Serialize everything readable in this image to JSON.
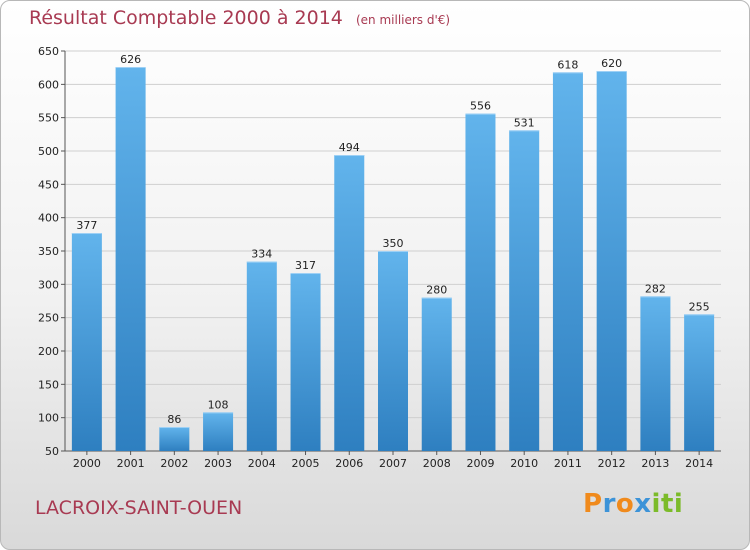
{
  "chart_data": {
    "type": "bar",
    "title": "Résultat Comptable 2000 à 2014",
    "subtitle": "(en milliers d'€)",
    "categories": [
      "2000",
      "2001",
      "2002",
      "2003",
      "2004",
      "2005",
      "2006",
      "2007",
      "2008",
      "2009",
      "2010",
      "2011",
      "2012",
      "2013",
      "2014"
    ],
    "values": [
      377,
      626,
      86,
      108,
      334,
      317,
      494,
      350,
      280,
      556,
      531,
      618,
      620,
      282,
      255
    ],
    "ylim": [
      50,
      650
    ],
    "yticks": [
      50,
      100,
      150,
      200,
      250,
      300,
      350,
      400,
      450,
      500,
      550,
      600,
      650
    ],
    "grid": true,
    "bar_color": "#4a9fdc",
    "title_color": "#a83a52"
  },
  "footer": {
    "city": "LACROIX-SAINT-OUEN",
    "logo": {
      "letters": [
        "P",
        "r",
        "o",
        "x",
        "i",
        "t",
        "i"
      ],
      "colors": [
        "#f08a1c",
        "#3c93d8",
        "#f08a1c",
        "#3c93d8",
        "#7cbb2a",
        "#7cbb2a",
        "#7cbb2a"
      ]
    }
  }
}
